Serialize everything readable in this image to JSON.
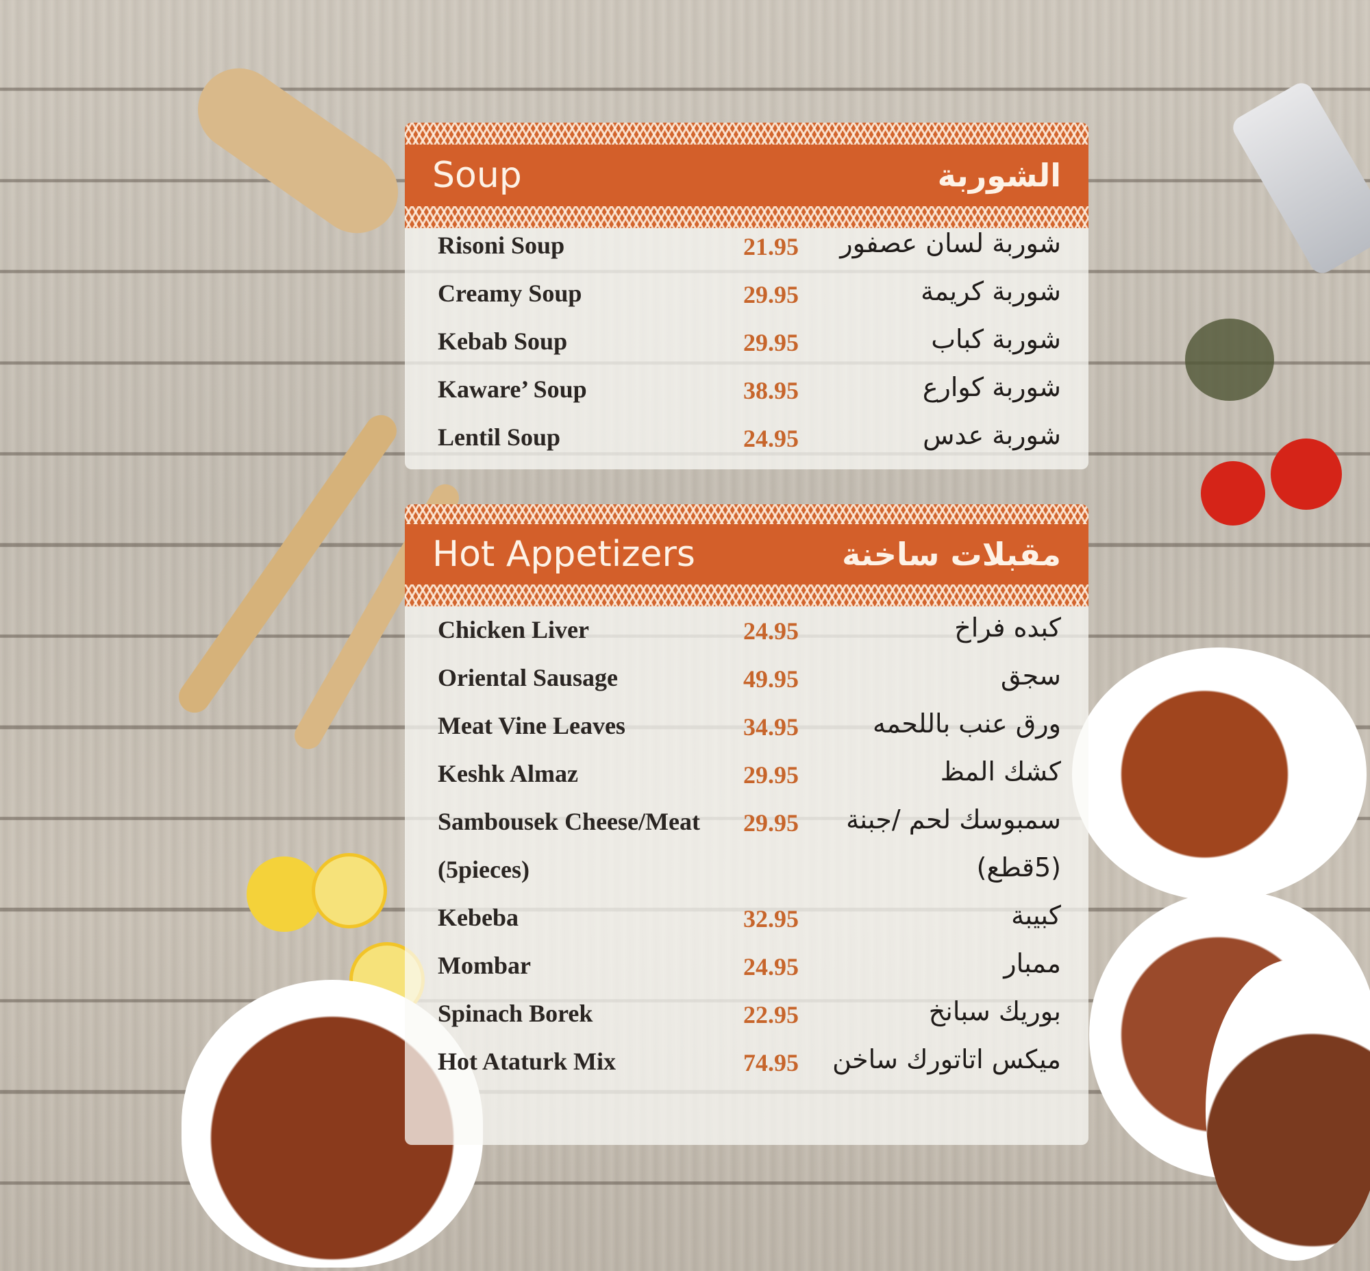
{
  "colors": {
    "accent": "#d35f2a",
    "price": "#c7652b",
    "text": "#2a2522"
  },
  "soup": {
    "title_en": "Soup",
    "title_ar": "الشوربة",
    "items": [
      {
        "en": "Risoni Soup",
        "price": "21.95",
        "ar": "شوربة لسان عصفور"
      },
      {
        "en": "Creamy Soup",
        "price": "29.95",
        "ar": "شوربة كريمة"
      },
      {
        "en": "Kebab Soup",
        "price": "29.95",
        "ar": "شوربة كباب"
      },
      {
        "en": "Kaware’ Soup",
        "price": "38.95",
        "ar": "شوربة كوارع"
      },
      {
        "en": "Lentil Soup",
        "price": "24.95",
        "ar": "شوربة عدس"
      }
    ]
  },
  "hot": {
    "title_en": "Hot Appetizers",
    "title_ar": "مقبلات ساخنة",
    "items": [
      {
        "en": "Chicken Liver",
        "price": "24.95",
        "ar": "كبده فراخ"
      },
      {
        "en": "Oriental Sausage",
        "price": "49.95",
        "ar": "سجق"
      },
      {
        "en": "Meat Vine Leaves",
        "price": "34.95",
        "ar": "ورق عنب باللحمه"
      },
      {
        "en": "Keshk Almaz",
        "price": "29.95",
        "ar": "كشك المظ"
      },
      {
        "en": "Sambousek Cheese/Meat",
        "price": "29.95",
        "ar": "سمبوسك لحم /جبنة"
      },
      {
        "en": "(5pieces)",
        "price": "",
        "ar": "(5قطع)"
      },
      {
        "en": "Kebeba",
        "price": "32.95",
        "ar": "كبيبة"
      },
      {
        "en": "Mombar",
        "price": "24.95",
        "ar": "ممبار"
      },
      {
        "en": "Spinach Borek",
        "price": "22.95",
        "ar": "بوريك سبانخ"
      },
      {
        "en": "Hot Ataturk Mix",
        "price": "74.95",
        "ar": "ميكس اتاتورك ساخن"
      }
    ]
  }
}
